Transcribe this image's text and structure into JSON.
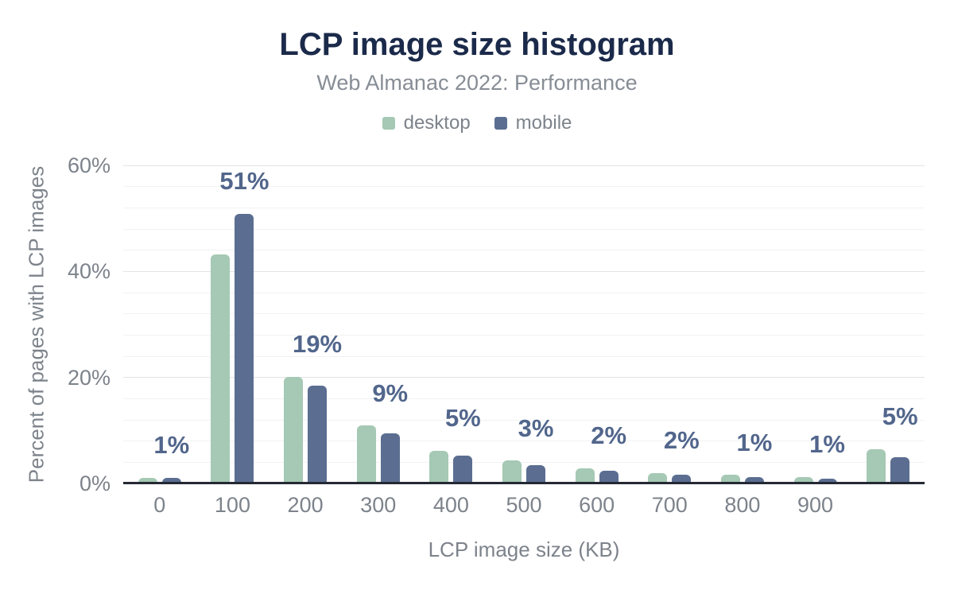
{
  "header": {
    "title": "LCP image size histogram",
    "subtitle": "Web Almanac 2022: Performance"
  },
  "legend": {
    "items": [
      {
        "label": "desktop",
        "color": "#a5c9b4"
      },
      {
        "label": "mobile",
        "color": "#5b6e91"
      }
    ]
  },
  "chart_data": {
    "type": "bar",
    "title": "LCP image size histogram",
    "subtitle": "Web Almanac 2022: Performance",
    "xlabel": "LCP image size (KB)",
    "ylabel": "Percent of pages with LCP images",
    "categories": [
      "0",
      "100",
      "200",
      "300",
      "400",
      "500",
      "600",
      "700",
      "800",
      "900",
      ""
    ],
    "series": [
      {
        "name": "desktop",
        "color": "#a5c9b4",
        "values": [
          1.1,
          43.2,
          20.1,
          10.9,
          6.2,
          4.3,
          2.9,
          2.0,
          1.6,
          1.2,
          6.5
        ]
      },
      {
        "name": "mobile",
        "color": "#5b6e91",
        "values": [
          1.0,
          50.9,
          18.5,
          9.4,
          5.3,
          3.4,
          2.4,
          1.6,
          1.2,
          0.9,
          5.0
        ]
      }
    ],
    "data_labels": [
      "1%",
      "51%",
      "19%",
      "9%",
      "5%",
      "3%",
      "2%",
      "2%",
      "1%",
      "1%",
      "5%"
    ],
    "data_label_color": "#52668c",
    "ylim": [
      0,
      60
    ],
    "y_ticks": [
      {
        "value": 0,
        "label": "0%"
      },
      {
        "value": 20,
        "label": "20%"
      },
      {
        "value": 40,
        "label": "40%"
      },
      {
        "value": 60,
        "label": "60%"
      }
    ],
    "grid": {
      "major_every": 20,
      "minor_every": 4,
      "on": true
    },
    "legend_position": "top",
    "theme": {
      "title_color": "#1b2a4a",
      "subtitle_color": "#878d95",
      "axis_text_color": "#7d838b",
      "axis_line_color": "#242933",
      "grid_major_color": "#e3e3e3",
      "grid_minor_color": "#f2f2f2",
      "background": "#ffffff"
    }
  }
}
